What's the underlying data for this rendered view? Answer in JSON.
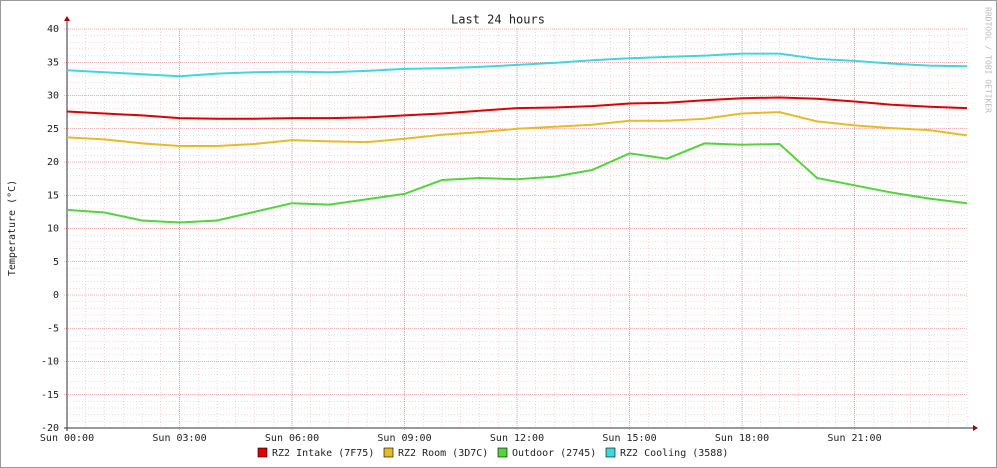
{
  "chart_data": {
    "type": "line",
    "title": "Last 24 hours",
    "y_label": "Temperature (°C)",
    "watermark": "RRDTOOL / TOBI OETIKER",
    "categories": [
      "Sun 00:00",
      null,
      null,
      "Sun 03:00",
      null,
      null,
      "Sun 06:00",
      null,
      null,
      "Sun 09:00",
      null,
      null,
      "Sun 12:00",
      null,
      null,
      "Sun 15:00",
      null,
      null,
      "Sun 18:00",
      null,
      null,
      "Sun 21:00",
      null,
      null,
      null
    ],
    "ylim": [
      -20,
      40
    ],
    "yticks": [
      -20,
      -15,
      -10,
      -5,
      0,
      5,
      10,
      15,
      20,
      25,
      30,
      35,
      40
    ],
    "grid": true,
    "legend": "bottom",
    "series": [
      {
        "name": "RZ2 Intake (7F75)",
        "color": "#e00000",
        "values": [
          27.6,
          27.3,
          27.0,
          26.6,
          26.5,
          26.5,
          26.6,
          26.6,
          26.7,
          27.0,
          27.3,
          27.7,
          28.1,
          28.2,
          28.4,
          28.8,
          28.9,
          29.3,
          29.6,
          29.7,
          29.5,
          29.1,
          28.6,
          28.3,
          28.1
        ]
      },
      {
        "name": "RZ2 Room (3D7C)",
        "color": "#e6bb2a",
        "values": [
          23.7,
          23.4,
          22.8,
          22.4,
          22.4,
          22.7,
          23.3,
          23.1,
          23.0,
          23.5,
          24.1,
          24.5,
          25.0,
          25.3,
          25.6,
          26.2,
          26.2,
          26.5,
          27.3,
          27.5,
          26.1,
          25.5,
          25.1,
          24.8,
          24.0
        ]
      },
      {
        "name": "Outdoor (2745)",
        "color": "#4fd63b",
        "values": [
          12.8,
          12.4,
          11.2,
          10.9,
          11.2,
          12.5,
          13.8,
          13.6,
          14.4,
          15.2,
          17.3,
          17.6,
          17.4,
          17.8,
          18.8,
          21.3,
          20.5,
          22.8,
          22.6,
          22.7,
          17.6,
          16.5,
          15.4,
          14.5,
          13.8
        ]
      },
      {
        "name": "RZ2 Cooling (3588)",
        "color": "#3fd6e0",
        "values": [
          33.8,
          33.5,
          33.2,
          32.9,
          33.3,
          33.5,
          33.6,
          33.5,
          33.7,
          34.0,
          34.1,
          34.3,
          34.6,
          34.9,
          35.3,
          35.6,
          35.8,
          36.0,
          36.3,
          36.3,
          35.5,
          35.2,
          34.8,
          34.5,
          34.4
        ]
      }
    ]
  }
}
